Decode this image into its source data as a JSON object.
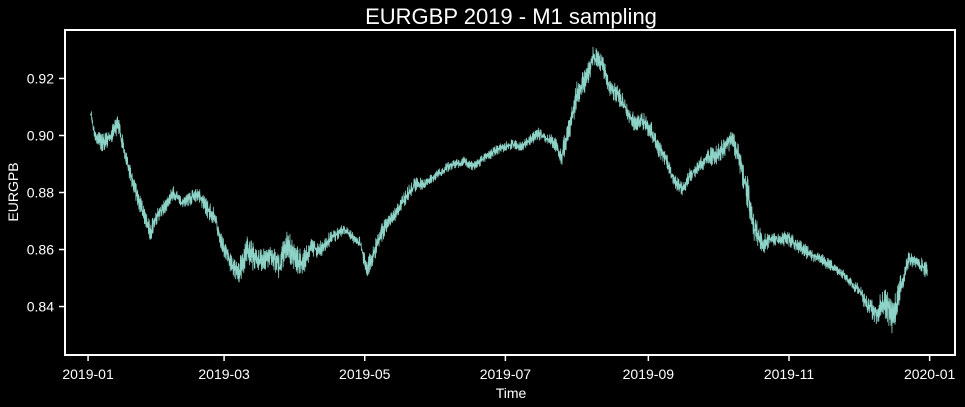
{
  "chart_data": {
    "type": "line",
    "title": "EURGBP 2019 - M1 sampling",
    "xlabel": "Time",
    "ylabel": "EURGPB",
    "x_tick_labels": [
      "2019-01",
      "2019-03",
      "2019-05",
      "2019-07",
      "2019-09",
      "2019-11",
      "2020-01"
    ],
    "x_ticks": [
      "2019-01-01",
      "2019-03-01",
      "2019-05-01",
      "2019-07-01",
      "2019-09-01",
      "2019-11-01",
      "2020-01-01"
    ],
    "y_tick_labels": [
      "0.84",
      "0.86",
      "0.88",
      "0.90",
      "0.92"
    ],
    "y_ticks": [
      0.84,
      0.86,
      0.88,
      0.9,
      0.92
    ],
    "xlim": [
      "2018-12-22",
      "2020-01-12"
    ],
    "ylim": [
      0.823,
      0.937
    ],
    "grid": false,
    "background_color": "#000000",
    "axes_color": "#ffffff",
    "series": [
      {
        "color": "#8dd3c7",
        "x": [
          "2019-01-02",
          "2019-01-04",
          "2019-01-07",
          "2019-01-10",
          "2019-01-14",
          "2019-01-17",
          "2019-01-21",
          "2019-01-24",
          "2019-01-28",
          "2019-01-31",
          "2019-02-04",
          "2019-02-07",
          "2019-02-11",
          "2019-02-14",
          "2019-02-18",
          "2019-02-21",
          "2019-02-25",
          "2019-02-28",
          "2019-03-04",
          "2019-03-07",
          "2019-03-11",
          "2019-03-14",
          "2019-03-18",
          "2019-03-21",
          "2019-03-25",
          "2019-03-28",
          "2019-04-01",
          "2019-04-04",
          "2019-04-08",
          "2019-04-11",
          "2019-04-15",
          "2019-04-18",
          "2019-04-22",
          "2019-04-25",
          "2019-04-29",
          "2019-05-02",
          "2019-05-06",
          "2019-05-09",
          "2019-05-13",
          "2019-05-16",
          "2019-05-20",
          "2019-05-23",
          "2019-05-27",
          "2019-05-30",
          "2019-06-03",
          "2019-06-06",
          "2019-06-10",
          "2019-06-13",
          "2019-06-17",
          "2019-06-20",
          "2019-06-24",
          "2019-06-27",
          "2019-07-01",
          "2019-07-04",
          "2019-07-08",
          "2019-07-11",
          "2019-07-15",
          "2019-07-18",
          "2019-07-22",
          "2019-07-25",
          "2019-07-29",
          "2019-08-01",
          "2019-08-05",
          "2019-08-08",
          "2019-08-12",
          "2019-08-15",
          "2019-08-19",
          "2019-08-22",
          "2019-08-26",
          "2019-08-29",
          "2019-09-02",
          "2019-09-05",
          "2019-09-09",
          "2019-09-12",
          "2019-09-16",
          "2019-09-19",
          "2019-09-23",
          "2019-09-26",
          "2019-09-30",
          "2019-10-03",
          "2019-10-07",
          "2019-10-10",
          "2019-10-14",
          "2019-10-17",
          "2019-10-21",
          "2019-10-24",
          "2019-10-28",
          "2019-10-31",
          "2019-11-04",
          "2019-11-07",
          "2019-11-11",
          "2019-11-14",
          "2019-11-18",
          "2019-11-21",
          "2019-11-25",
          "2019-11-28",
          "2019-12-02",
          "2019-12-05",
          "2019-12-09",
          "2019-12-12",
          "2019-12-16",
          "2019-12-19",
          "2019-12-23",
          "2019-12-27",
          "2019-12-31"
        ],
        "y": [
          0.908,
          0.9,
          0.897,
          0.899,
          0.904,
          0.893,
          0.882,
          0.875,
          0.866,
          0.872,
          0.876,
          0.88,
          0.876,
          0.878,
          0.879,
          0.875,
          0.871,
          0.862,
          0.855,
          0.851,
          0.86,
          0.857,
          0.856,
          0.858,
          0.854,
          0.862,
          0.857,
          0.855,
          0.861,
          0.86,
          0.863,
          0.865,
          0.867,
          0.865,
          0.862,
          0.853,
          0.861,
          0.867,
          0.871,
          0.875,
          0.88,
          0.883,
          0.883,
          0.885,
          0.887,
          0.889,
          0.89,
          0.891,
          0.889,
          0.891,
          0.893,
          0.895,
          0.896,
          0.897,
          0.896,
          0.898,
          0.901,
          0.899,
          0.898,
          0.892,
          0.903,
          0.915,
          0.92,
          0.928,
          0.925,
          0.917,
          0.914,
          0.91,
          0.904,
          0.906,
          0.902,
          0.896,
          0.891,
          0.884,
          0.881,
          0.886,
          0.889,
          0.892,
          0.893,
          0.895,
          0.899,
          0.893,
          0.88,
          0.867,
          0.862,
          0.864,
          0.863,
          0.864,
          0.862,
          0.86,
          0.858,
          0.857,
          0.855,
          0.853,
          0.851,
          0.848,
          0.845,
          0.84,
          0.838,
          0.842,
          0.836,
          0.846,
          0.857,
          0.855,
          0.853
        ],
        "band": [
          0.003,
          0.003,
          0.004,
          0.003,
          0.004,
          0.004,
          0.004,
          0.004,
          0.004,
          0.003,
          0.003,
          0.003,
          0.002,
          0.003,
          0.003,
          0.004,
          0.004,
          0.004,
          0.004,
          0.005,
          0.006,
          0.006,
          0.005,
          0.005,
          0.006,
          0.007,
          0.006,
          0.005,
          0.004,
          0.004,
          0.003,
          0.003,
          0.002,
          0.002,
          0.003,
          0.004,
          0.004,
          0.004,
          0.003,
          0.003,
          0.003,
          0.003,
          0.002,
          0.002,
          0.002,
          0.002,
          0.002,
          0.002,
          0.002,
          0.002,
          0.002,
          0.002,
          0.002,
          0.002,
          0.002,
          0.002,
          0.003,
          0.002,
          0.003,
          0.004,
          0.005,
          0.005,
          0.005,
          0.005,
          0.004,
          0.004,
          0.004,
          0.004,
          0.004,
          0.004,
          0.004,
          0.004,
          0.003,
          0.003,
          0.003,
          0.003,
          0.003,
          0.004,
          0.004,
          0.004,
          0.004,
          0.005,
          0.007,
          0.006,
          0.004,
          0.003,
          0.003,
          0.003,
          0.003,
          0.003,
          0.003,
          0.002,
          0.003,
          0.002,
          0.002,
          0.002,
          0.003,
          0.004,
          0.005,
          0.007,
          0.007,
          0.005,
          0.003,
          0.003,
          0.004
        ]
      }
    ]
  }
}
